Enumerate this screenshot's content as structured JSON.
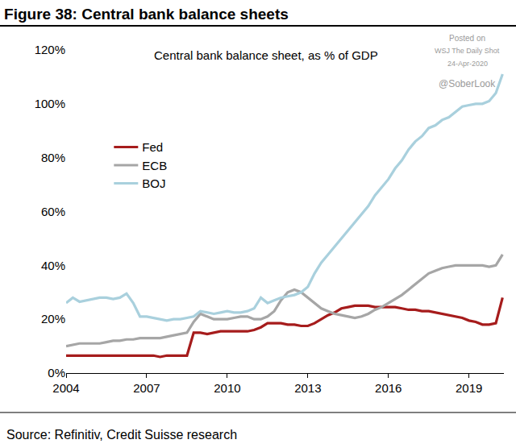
{
  "chart_data": {
    "type": "line",
    "title": "Figure 38: Central bank balance sheets",
    "subtitle": "Central bank balance sheet, as % of GDP",
    "annotations": [
      "Source: Refinitiv, Credit Suisse research",
      "Posted on",
      "WSJ The Daily Shot",
      "24-Apr-2020",
      "@SoberLook"
    ],
    "x": [
      2004,
      2004.25,
      2004.5,
      2004.75,
      2005,
      2005.25,
      2005.5,
      2005.75,
      2006,
      2006.25,
      2006.5,
      2006.75,
      2007,
      2007.25,
      2007.5,
      2007.75,
      2008,
      2008.25,
      2008.5,
      2008.75,
      2009,
      2009.25,
      2009.5,
      2009.75,
      2010,
      2010.25,
      2010.5,
      2010.75,
      2011,
      2011.25,
      2011.5,
      2011.75,
      2012,
      2012.25,
      2012.5,
      2012.75,
      2013,
      2013.25,
      2013.5,
      2013.75,
      2014,
      2014.25,
      2014.5,
      2014.75,
      2015,
      2015.25,
      2015.5,
      2015.75,
      2016,
      2016.25,
      2016.5,
      2016.75,
      2017,
      2017.25,
      2017.5,
      2017.75,
      2018,
      2018.25,
      2018.5,
      2018.75,
      2019,
      2019.25,
      2019.5,
      2019.75,
      2020,
      2020.25
    ],
    "series": [
      {
        "name": "Fed",
        "color": "#a61c1c",
        "values": [
          6.5,
          6.5,
          6.5,
          6.5,
          6.5,
          6.5,
          6.5,
          6.5,
          6.5,
          6.5,
          6.5,
          6.5,
          6.5,
          6.5,
          6,
          6.5,
          6.5,
          6.5,
          6.5,
          15,
          15,
          14.5,
          15,
          15.5,
          15.5,
          15.5,
          15.5,
          15.5,
          16,
          17,
          18.5,
          18.5,
          18.5,
          18,
          18,
          17.5,
          17.5,
          18.5,
          20,
          21.5,
          22.5,
          24,
          24.5,
          25,
          25,
          25,
          24.5,
          24.5,
          24.5,
          24.5,
          24,
          23.5,
          23.5,
          23,
          23,
          22.5,
          22,
          21.5,
          21,
          20.5,
          19.5,
          19,
          18,
          18,
          18.5,
          28
        ]
      },
      {
        "name": "ECB",
        "color": "#a6a6a6",
        "values": [
          10,
          10.5,
          11,
          11,
          11,
          11,
          11.5,
          12,
          12,
          12.5,
          12.5,
          13,
          13,
          13,
          13,
          13.5,
          14,
          14.5,
          15,
          19,
          22,
          21,
          20,
          20,
          20,
          20.5,
          21,
          21,
          20,
          20,
          21,
          23,
          27,
          30,
          31,
          30,
          28,
          26,
          24,
          23,
          22,
          21.5,
          21,
          20.5,
          21,
          22,
          23.5,
          24.5,
          26,
          27.5,
          29,
          31,
          33,
          35,
          37,
          38,
          39,
          39.5,
          40,
          40,
          40,
          40,
          40,
          39.5,
          40,
          44
        ]
      },
      {
        "name": "BOJ",
        "color": "#a9d0dd",
        "values": [
          26,
          28,
          26.5,
          27,
          27.5,
          28,
          28,
          27.5,
          28,
          29.5,
          26,
          21,
          21,
          20.5,
          20,
          19.5,
          20,
          20,
          20.5,
          21,
          23,
          22.5,
          22,
          22.5,
          23,
          22.5,
          22.5,
          23,
          24,
          28,
          26,
          27,
          28,
          28.5,
          29,
          30,
          32,
          37,
          41,
          44,
          47,
          50,
          53,
          56,
          59,
          62,
          66,
          69,
          72,
          76,
          79,
          83,
          86,
          88,
          91,
          92,
          94,
          95,
          97,
          99,
          99.5,
          100,
          100,
          101,
          104,
          111
        ]
      }
    ],
    "xlim": [
      2004,
      2020.3
    ],
    "xticks": [
      2004,
      2007,
      2010,
      2013,
      2016,
      2019
    ],
    "ylim": [
      0,
      120
    ],
    "yticks": [
      {
        "value": 0,
        "label": "0%"
      },
      {
        "value": 20,
        "label": "20%"
      },
      {
        "value": 40,
        "label": "40%"
      },
      {
        "value": 60,
        "label": "60%"
      },
      {
        "value": 80,
        "label": "80%"
      },
      {
        "value": 100,
        "label": "100%"
      },
      {
        "value": 120,
        "label": "120%"
      }
    ],
    "grid": false,
    "legend": "upper left"
  }
}
